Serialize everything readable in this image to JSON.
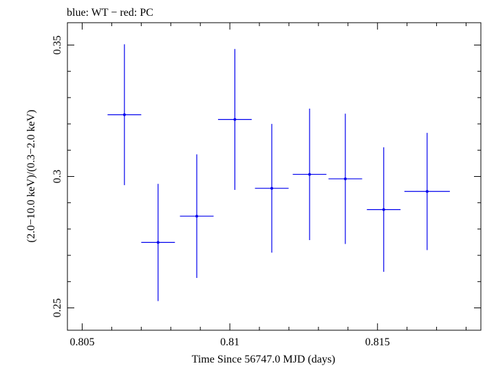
{
  "chart_data": {
    "type": "scatter",
    "title": "blue: WT − red: PC",
    "xlabel": "Time Since 56747.0 MJD (days)",
    "ylabel": "(2.0−10.0 keV)/(0.3−2.0 keV)",
    "xlim": [
      0.8045,
      0.8185
    ],
    "ylim": [
      0.2415,
      0.3585
    ],
    "x_ticks": [
      0.805,
      0.81,
      0.815
    ],
    "x_tick_labels": [
      "0.805",
      "0.81",
      "0.815"
    ],
    "y_ticks": [
      0.25,
      0.3,
      0.35
    ],
    "y_tick_labels": [
      "0.25",
      "0.3",
      "0.35"
    ],
    "grid": false,
    "series": [
      {
        "color": "#0000ee",
        "points": [
          {
            "x": 0.80643,
            "xerr": 0.00057,
            "y": 0.3235,
            "yerr": 0.0268
          },
          {
            "x": 0.80757,
            "xerr": 0.00057,
            "y": 0.2749,
            "yerr": 0.0223
          },
          {
            "x": 0.80888,
            "xerr": 0.00057,
            "y": 0.2849,
            "yerr": 0.0235
          },
          {
            "x": 0.81017,
            "xerr": 0.00057,
            "y": 0.3217,
            "yerr": 0.0268
          },
          {
            "x": 0.81142,
            "xerr": 0.00057,
            "y": 0.2955,
            "yerr": 0.0245
          },
          {
            "x": 0.8127,
            "xerr": 0.00057,
            "y": 0.3008,
            "yerr": 0.025
          },
          {
            "x": 0.81391,
            "xerr": 0.00057,
            "y": 0.2991,
            "yerr": 0.0248
          },
          {
            "x": 0.81521,
            "xerr": 0.00057,
            "y": 0.2874,
            "yerr": 0.0237
          },
          {
            "x": 0.81668,
            "xerr": 0.00077,
            "y": 0.2943,
            "yerr": 0.0223
          }
        ]
      }
    ]
  }
}
